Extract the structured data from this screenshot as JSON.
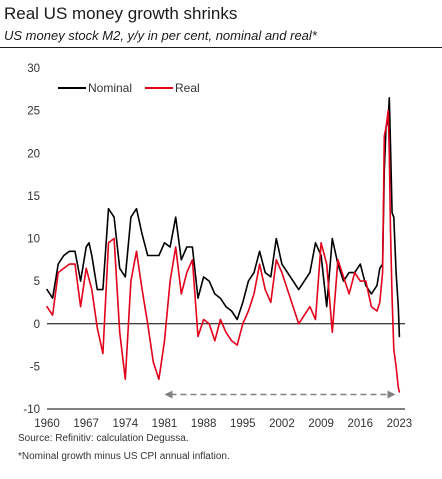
{
  "title": "Real US money growth shrinks",
  "subtitle": "US money stock M2, y/y in per cent, nominal and real*",
  "source": "Source: Refinitiv: calculation Degussa.",
  "footnote": "*Nominal growth minus US CPI annual inflation.",
  "colors": {
    "nominal": "#000000",
    "real": "#e3001b",
    "zero_line": "#000000",
    "arrow": "#808080"
  },
  "chart_data": {
    "type": "line",
    "title": "Real US money growth shrinks",
    "subtitle": "US money stock M2, y/y in per cent, nominal and real*",
    "xlabel": "",
    "ylabel": "",
    "xlim": [
      1960,
      2024
    ],
    "ylim": [
      -10,
      30
    ],
    "x_ticks": [
      "1960",
      "1967",
      "1974",
      "1981",
      "1988",
      "1995",
      "2002",
      "2009",
      "2016",
      "2023"
    ],
    "y_ticks": [
      "30",
      "25",
      "20",
      "15",
      "10",
      "5",
      "0",
      "-5",
      "-10"
    ],
    "grid": false,
    "legend": "top-left",
    "series": [
      {
        "name": "Nominal",
        "color": "#000000",
        "x": [
          1960,
          1961,
          1962,
          1963,
          1964,
          1965,
          1966,
          1967,
          1967.5,
          1968,
          1969,
          1970,
          1971,
          1972,
          1973,
          1974,
          1975,
          1976,
          1977,
          1978,
          1979,
          1980,
          1981,
          1982,
          1983,
          1984,
          1985,
          1986,
          1987,
          1988,
          1989,
          1990,
          1991,
          1992,
          1993,
          1994,
          1995,
          1996,
          1997,
          1998,
          1999,
          2000,
          2001,
          2002,
          2003,
          2004,
          2005,
          2006,
          2007,
          2008,
          2009,
          2010,
          2011,
          2012,
          2013,
          2014,
          2015,
          2016,
          2017,
          2018,
          2019,
          2019.5,
          2020,
          2020.3,
          2020.6,
          2021,
          2021.2,
          2021.4,
          2021.7,
          2022,
          2022.4,
          2022.8,
          2023
        ],
        "y": [
          4,
          3,
          7,
          8,
          8.5,
          8.5,
          5,
          9,
          9.5,
          8,
          4,
          4,
          13.5,
          12.5,
          6.5,
          5.5,
          12.5,
          13.5,
          10.5,
          8,
          8,
          8,
          9.5,
          9,
          12.5,
          7.5,
          9,
          9,
          3,
          5.5,
          5,
          3.5,
          3,
          2,
          1.5,
          0.5,
          2.5,
          5,
          6,
          8.5,
          6,
          5.5,
          10,
          7,
          6,
          5,
          4,
          5,
          6,
          9.5,
          8,
          2,
          10,
          7,
          5,
          6,
          6,
          7,
          4.5,
          3.5,
          4.5,
          6.5,
          7,
          18,
          23,
          24,
          26.5,
          21,
          13,
          12.5,
          6,
          2,
          -1.5
        ]
      },
      {
        "name": "Real",
        "color": "#e3001b",
        "x": [
          1960,
          1961,
          1962,
          1963,
          1964,
          1965,
          1966,
          1967,
          1968,
          1969,
          1970,
          1971,
          1972,
          1973,
          1974,
          1975,
          1976,
          1977,
          1978,
          1979,
          1980,
          1981,
          1982,
          1983,
          1984,
          1985,
          1986,
          1987,
          1988,
          1989,
          1990,
          1991,
          1992,
          1993,
          1994,
          1995,
          1996,
          1997,
          1998,
          1999,
          2000,
          2001,
          2002,
          2003,
          2004,
          2005,
          2006,
          2007,
          2008,
          2009,
          2010,
          2011,
          2012,
          2013,
          2014,
          2015,
          2016,
          2017,
          2018,
          2019,
          2019.5,
          2020,
          2020.3,
          2020.6,
          2021,
          2021.2,
          2021.4,
          2021.7,
          2022,
          2022.4,
          2022.8,
          2023
        ],
        "y": [
          2,
          1,
          6,
          6.5,
          7,
          7,
          2,
          6.5,
          4,
          -0.5,
          -3.5,
          9.5,
          10,
          -1,
          -6.5,
          5,
          8.5,
          4,
          0,
          -4.5,
          -6.5,
          -2,
          5,
          9,
          3.5,
          6,
          7.5,
          -1.5,
          0.5,
          0,
          -2,
          0.5,
          -1,
          -2,
          -2.5,
          0,
          1.5,
          3.5,
          7,
          4,
          2.5,
          7.5,
          6,
          4,
          2,
          0,
          1,
          2,
          0.5,
          9.5,
          7,
          -1,
          7.5,
          5.5,
          3.5,
          6,
          5,
          5,
          2,
          1.5,
          2.5,
          6,
          22,
          23,
          25,
          20,
          11,
          3,
          -3,
          -5,
          -7.5,
          -8
        ]
      }
    ],
    "annotations": [
      {
        "type": "double-arrow",
        "x_from": 1981,
        "x_to": 2022.3,
        "y": -8.3,
        "style": "dashed"
      }
    ]
  }
}
